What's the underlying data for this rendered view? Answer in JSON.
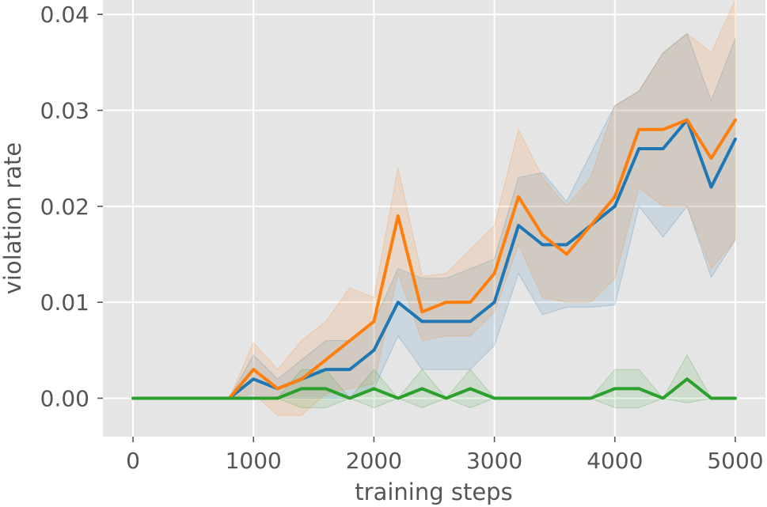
{
  "chart_data": {
    "type": "line",
    "xlabel": "training steps",
    "ylabel": "violation rate",
    "xlim": [
      -250,
      5250
    ],
    "ylim": [
      -0.004,
      0.0415
    ],
    "xticks": [
      0,
      1000,
      2000,
      3000,
      4000,
      5000
    ],
    "yticks": [
      0.0,
      0.01,
      0.02,
      0.03,
      0.04
    ],
    "xtick_labels": [
      "0",
      "1000",
      "2000",
      "3000",
      "4000",
      "5000"
    ],
    "ytick_labels": [
      "0.00",
      "0.01",
      "0.02",
      "0.03",
      "0.04"
    ],
    "grid": true,
    "background": "#e5e5e5",
    "x": [
      0,
      200,
      400,
      600,
      800,
      1000,
      1200,
      1400,
      1600,
      1800,
      2000,
      2200,
      2400,
      2600,
      2800,
      3000,
      3200,
      3400,
      3600,
      3800,
      4000,
      4200,
      4400,
      4600,
      4800,
      5000
    ],
    "series": [
      {
        "color": "#1f77b4",
        "values": [
          0,
          0,
          0,
          0,
          0,
          0.002,
          0.001,
          0.002,
          0.003,
          0.003,
          0.005,
          0.01,
          0.008,
          0.008,
          0.008,
          0.01,
          0.018,
          0.016,
          0.016,
          0.018,
          0.02,
          0.026,
          0.026,
          0.029,
          0.022,
          0.027
        ],
        "lower": [
          0,
          0,
          0,
          0,
          0,
          0.0,
          0.0,
          0.0,
          0.0,
          0.0,
          0.001,
          0.0065,
          0.003,
          0.003,
          0.003,
          0.0055,
          0.013,
          0.0087,
          0.0095,
          0.0095,
          0.0097,
          0.02,
          0.0168,
          0.02,
          0.0126,
          0.0165
        ],
        "upper": [
          0,
          0,
          0,
          0,
          0,
          0.0045,
          0.002,
          0.004,
          0.006,
          0.006,
          0.008,
          0.0135,
          0.0125,
          0.0125,
          0.0135,
          0.0145,
          0.023,
          0.0235,
          0.0205,
          0.0255,
          0.0305,
          0.032,
          0.036,
          0.038,
          0.031,
          0.0375
        ]
      },
      {
        "color": "#ff7f0e",
        "values": [
          0,
          0,
          0,
          0,
          0,
          0.003,
          0.001,
          0.002,
          0.004,
          0.006,
          0.008,
          0.019,
          0.009,
          0.01,
          0.01,
          0.013,
          0.021,
          0.017,
          0.015,
          0.018,
          0.021,
          0.028,
          0.028,
          0.029,
          0.025,
          0.029
        ],
        "lower": [
          0,
          0,
          0,
          0,
          0,
          0.0005,
          -0.0018,
          -0.0018,
          0.0005,
          0.001,
          0.0015,
          0.013,
          0.006,
          0.0065,
          0.0065,
          0.009,
          0.016,
          0.0105,
          0.01,
          0.01,
          0.0125,
          0.022,
          0.02,
          0.02,
          0.0135,
          0.0165
        ],
        "upper": [
          0,
          0,
          0,
          0,
          0,
          0.0058,
          0.003,
          0.006,
          0.008,
          0.0115,
          0.0105,
          0.024,
          0.0127,
          0.013,
          0.0155,
          0.018,
          0.028,
          0.023,
          0.02,
          0.023,
          0.0305,
          0.032,
          0.036,
          0.038,
          0.036,
          0.0415
        ]
      },
      {
        "color": "#2ca02c",
        "values": [
          0,
          0,
          0,
          0,
          0,
          0,
          0,
          0.001,
          0.001,
          0,
          0.001,
          0,
          0.001,
          0,
          0.001,
          0,
          0,
          0,
          0,
          0,
          0.001,
          0.001,
          0,
          0.002,
          0,
          0
        ],
        "lower": [
          0,
          0,
          0,
          0,
          0,
          0,
          0,
          -0.001,
          -0.001,
          0,
          -0.001,
          0,
          -0.001,
          0,
          -0.001,
          0,
          0,
          0,
          0,
          0,
          -0.001,
          -0.001,
          0,
          -0.0005,
          0,
          0
        ],
        "upper": [
          0,
          0,
          0,
          0,
          0,
          0,
          0,
          0.003,
          0.003,
          0,
          0.003,
          0,
          0.003,
          0,
          0.003,
          0,
          0,
          0,
          0,
          0,
          0.003,
          0.003,
          0,
          0.0045,
          0,
          0
        ]
      }
    ]
  }
}
